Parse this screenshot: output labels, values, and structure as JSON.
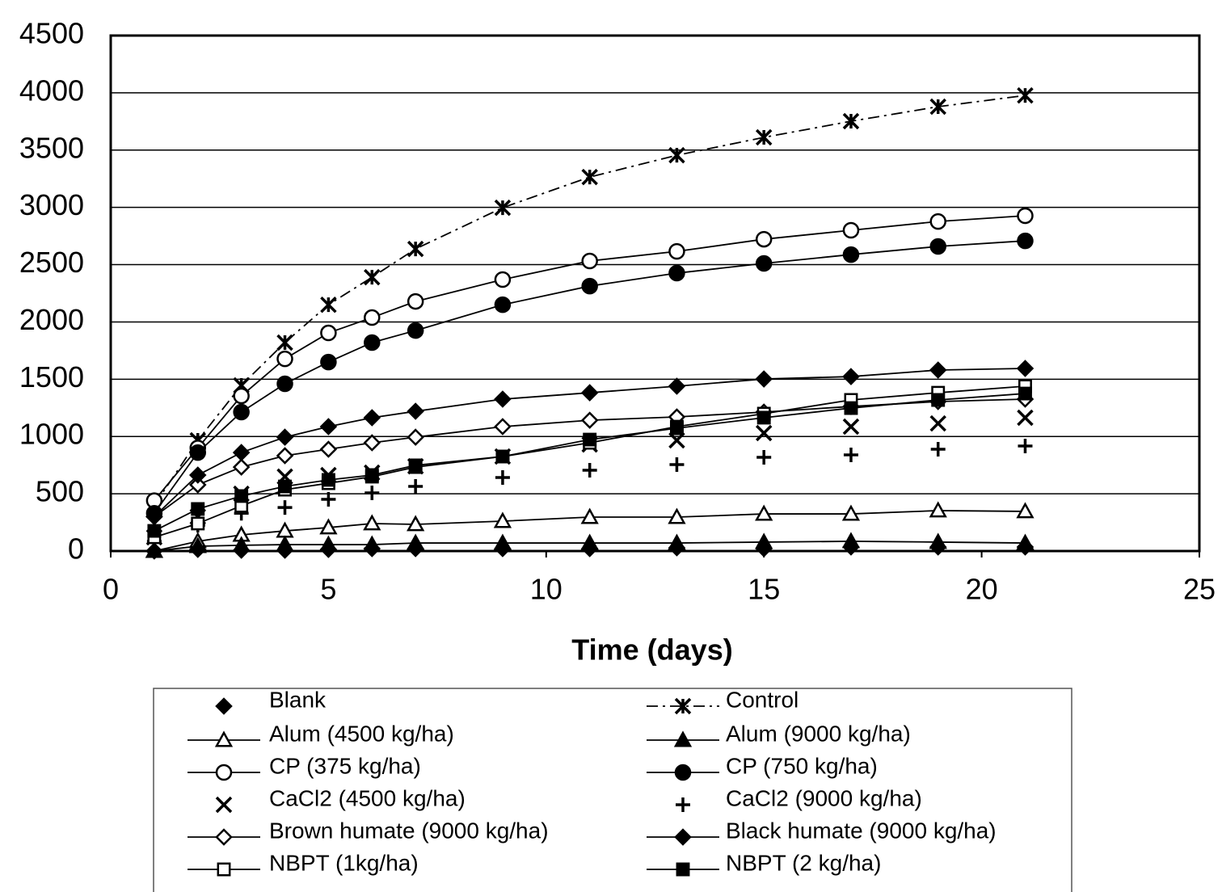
{
  "chart_data": {
    "type": "line",
    "x_label": "Time (days)",
    "x": [
      1,
      2,
      3,
      4,
      5,
      6,
      7,
      9,
      11,
      13,
      15,
      17,
      19,
      21
    ],
    "xlim": [
      0,
      25
    ],
    "xticks": [
      0,
      5,
      10,
      15,
      20,
      25
    ],
    "ylim": [
      0,
      4500
    ],
    "yticks": [
      0,
      500,
      1000,
      1500,
      2000,
      2500,
      3000,
      3500,
      4000,
      4500
    ],
    "grid": true,
    "series": [
      {
        "name": "Blank",
        "color": "#000000",
        "marker": "diamond-filled",
        "line": "none",
        "values": [
          0,
          14,
          7,
          7,
          14,
          21,
          21,
          21,
          21,
          28,
          21,
          35,
          35,
          35
        ]
      },
      {
        "name": "Control",
        "color": "#000000",
        "marker": "asterisk",
        "line": "dashed",
        "values": [
          400,
          966,
          1446,
          1820,
          2150,
          2390,
          2637,
          2997,
          3265,
          3455,
          3611,
          3752,
          3879,
          3977
        ]
      },
      {
        "name": "Alum (4500 kg/ha)",
        "color": "#000000",
        "marker": "triangle-open",
        "line": "solid",
        "values": [
          0,
          85,
          141,
          176,
          205,
          240,
          233,
          261,
          296,
          296,
          324,
          324,
          353,
          346
        ]
      },
      {
        "name": "Alum (9000 kg/ha)",
        "color": "#000000",
        "marker": "triangle-filled",
        "line": "solid",
        "values": [
          0,
          42,
          50,
          56,
          56,
          56,
          70,
          70,
          70,
          70,
          78,
          85,
          78,
          70
        ]
      },
      {
        "name": "CP (375 kg/ha)",
        "color": "#000000",
        "marker": "circle-open",
        "line": "solid",
        "values": [
          440,
          900,
          1354,
          1678,
          1904,
          2038,
          2179,
          2370,
          2532,
          2616,
          2722,
          2800,
          2877,
          2927
        ]
      },
      {
        "name": "CP (750 kg/ha)",
        "color": "#000000",
        "marker": "circle-filled",
        "line": "solid",
        "values": [
          330,
          860,
          1213,
          1460,
          1650,
          1820,
          1925,
          2150,
          2313,
          2426,
          2511,
          2588,
          2659,
          2708
        ]
      },
      {
        "name": "CaCl2 (4500 kg/ha)",
        "color": "#000000",
        "marker": "x",
        "line": "none",
        "values": [
          120,
          300,
          500,
          650,
          663,
          684,
          740,
          825,
          930,
          966,
          1030,
          1086,
          1114,
          1164
        ]
      },
      {
        "name": "CaCl2 (9000 kg/ha)",
        "color": "#000000",
        "marker": "plus",
        "line": "none",
        "values": [
          85,
          225,
          330,
          380,
          451,
          508,
          564,
          642,
          705,
          755,
          818,
          839,
          889,
          917
        ]
      },
      {
        "name": "Brown humate (9000 kg/ha)",
        "color": "#000000",
        "marker": "diamond-open",
        "line": "solid",
        "values": [
          300,
          578,
          733,
          832,
          889,
          945,
          994,
          1086,
          1142,
          1171,
          1213,
          1262,
          1305,
          1326
        ]
      },
      {
        "name": "Black humate (9000 kg/ha)",
        "color": "#000000",
        "marker": "diamond-filled",
        "line": "solid",
        "values": [
          300,
          663,
          860,
          994,
          1086,
          1164,
          1220,
          1326,
          1382,
          1439,
          1502,
          1523,
          1580,
          1594
        ]
      },
      {
        "name": "NBPT (1kg/ha)",
        "color": "#000000",
        "marker": "square-open",
        "line": "solid",
        "values": [
          120,
          240,
          395,
          536,
          592,
          649,
          733,
          825,
          945,
          1086,
          1199,
          1319,
          1382,
          1439
        ]
      },
      {
        "name": "NBPT (2 kg/ha)",
        "color": "#000000",
        "marker": "square-filled",
        "line": "solid",
        "values": [
          176,
          367,
          480,
          564,
          621,
          663,
          748,
          825,
          973,
          1072,
          1164,
          1248,
          1319,
          1375
        ]
      }
    ]
  }
}
